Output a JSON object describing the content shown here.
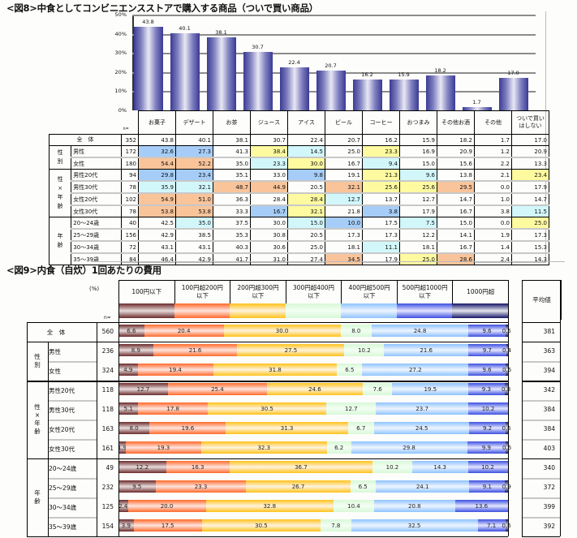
{
  "fig8": {
    "title": "<図8>中食としてコンビニエンスストアで購入する商品（ついで買い商品）",
    "n_label": "n=",
    "y_ticks": [
      "50%",
      "40%",
      "30%",
      "20%",
      "10%",
      "0%"
    ],
    "categories": [
      "お菓子",
      "デザート",
      "お茶",
      "ジュース",
      "アイス",
      "ビール",
      "コーヒー",
      "おつまみ",
      "その他お酒",
      "その他",
      "ついで買い\nはしない"
    ],
    "rows": [
      {
        "group": "",
        "label": "全　体",
        "n": "352",
        "values": [
          "43.8",
          "40.1",
          "38.1",
          "30.7",
          "22.4",
          "20.7",
          "16.2",
          "15.9",
          "18.2",
          "1.7",
          "17.0"
        ],
        "colors": [
          "",
          "",
          "",
          "",
          "",
          "",
          "",
          "",
          "",
          "",
          ""
        ]
      },
      {
        "group": "性別",
        "label": "男性",
        "n": "172",
        "values": [
          "32.6",
          "27.3",
          "41.3",
          "38.4",
          "14.5",
          "25.0",
          "23.3",
          "16.9",
          "20.9",
          "1.2",
          "20.9"
        ],
        "colors": [
          "blue",
          "blue",
          "",
          "yellow",
          "cyan",
          "",
          "yellow",
          "",
          "",
          "",
          ""
        ]
      },
      {
        "group": "性別",
        "label": "女性",
        "n": "180",
        "values": [
          "54.4",
          "52.2",
          "35.0",
          "23.3",
          "30.0",
          "16.7",
          "9.4",
          "15.0",
          "15.6",
          "2.2",
          "13.3"
        ],
        "colors": [
          "orange",
          "orange",
          "",
          "cyan",
          "yellow",
          "",
          "cyan",
          "",
          "",
          "",
          ""
        ]
      },
      {
        "group": "性×年齢",
        "label": "男性20代",
        "n": "94",
        "values": [
          "29.8",
          "23.4",
          "35.1",
          "33.0",
          "9.8",
          "19.1",
          "21.3",
          "9.6",
          "13.8",
          "2.1",
          "23.4"
        ],
        "colors": [
          "blue",
          "blue",
          "",
          "",
          "blue",
          "",
          "yellow",
          "cyan",
          "",
          "",
          "yellow"
        ]
      },
      {
        "group": "性×年齢",
        "label": "男性30代",
        "n": "78",
        "values": [
          "35.9",
          "32.1",
          "48.7",
          "44.9",
          "20.5",
          "32.1",
          "25.6",
          "25.6",
          "29.5",
          "0.0",
          "17.9"
        ],
        "colors": [
          "cyan",
          "cyan",
          "orange",
          "orange",
          "",
          "orange",
          "yellow",
          "yellow",
          "orange",
          "",
          ""
        ]
      },
      {
        "group": "性×年齢",
        "label": "女性20代",
        "n": "102",
        "values": [
          "54.9",
          "51.0",
          "36.3",
          "28.4",
          "28.4",
          "12.7",
          "13.7",
          "12.7",
          "14.7",
          "1.0",
          "14.7"
        ],
        "colors": [
          "orange",
          "orange",
          "",
          "",
          "yellow",
          "cyan",
          "",
          "",
          "",
          "",
          ""
        ]
      },
      {
        "group": "性×年齢",
        "label": "女性30代",
        "n": "78",
        "values": [
          "53.8",
          "53.8",
          "33.3",
          "16.7",
          "32.1",
          "21.8",
          "3.8",
          "17.9",
          "16.7",
          "3.8",
          "11.5"
        ],
        "colors": [
          "orange",
          "orange",
          "",
          "blue",
          "yellow",
          "",
          "blue",
          "",
          "",
          "",
          "cyan"
        ]
      },
      {
        "group": "年齢",
        "label": "20～24歳",
        "n": "40",
        "values": [
          "42.5",
          "35.0",
          "37.5",
          "30.0",
          "15.0",
          "10.0",
          "17.5",
          "7.5",
          "15.0",
          "0.0",
          "25.0"
        ],
        "colors": [
          "",
          "cyan",
          "",
          "",
          "cyan",
          "blue",
          "",
          "cyan",
          "",
          "",
          "yellow"
        ]
      },
      {
        "group": "年齢",
        "label": "25～29歳",
        "n": "156",
        "values": [
          "42.9",
          "38.5",
          "35.3",
          "30.8",
          "20.5",
          "17.3",
          "17.3",
          "12.2",
          "14.1",
          "1.9",
          "17.3"
        ],
        "colors": [
          "",
          "",
          "",
          "",
          "",
          "",
          "",
          "",
          "",
          "",
          ""
        ]
      },
      {
        "group": "年齢",
        "label": "30～34歳",
        "n": "72",
        "values": [
          "43.1",
          "43.1",
          "40.3",
          "30.6",
          "25.0",
          "18.1",
          "11.1",
          "18.1",
          "16.7",
          "1.4",
          "15.3"
        ],
        "colors": [
          "",
          "",
          "",
          "",
          "",
          "",
          "cyan",
          "",
          "",
          "",
          ""
        ]
      },
      {
        "group": "年齢",
        "label": "35～39歳",
        "n": "84",
        "values": [
          "46.4",
          "42.9",
          "41.7",
          "31.0",
          "27.4",
          "34.5",
          "17.9",
          "25.0",
          "28.6",
          "2.4",
          "14.3"
        ],
        "colors": [
          "",
          "",
          "",
          "",
          "",
          "orange",
          "",
          "yellow",
          "orange",
          "",
          ""
        ]
      }
    ],
    "groups": [
      {
        "label": "全　体",
        "rows": [
          0
        ]
      },
      {
        "label": "性\n別",
        "rows": [
          1,
          2
        ]
      },
      {
        "label": "性\n×\n年\n齢",
        "rows": [
          3,
          4,
          5,
          6
        ]
      },
      {
        "label": "年\n齢",
        "rows": [
          7,
          8,
          9,
          10
        ]
      }
    ]
  },
  "fig9": {
    "title": "<図9>内食（自炊）1回あたりの費用",
    "pct_label": "(%)",
    "n_label": "n=",
    "avg_header": "平均値",
    "legend": [
      "100円以下",
      "100円超200円\n以下",
      "200円超300円\n以下",
      "300円超400円\n以下",
      "400円超500円\n以下",
      "500円超1000円\n以下",
      "1000円超"
    ],
    "rows": [
      {
        "label": "全　体",
        "n": "560",
        "values": [
          6.6,
          20.4,
          30.0,
          8.0,
          24.8,
          9.6,
          0.5
        ],
        "avg": "381"
      },
      {
        "label": "男性",
        "n": "236",
        "values": [
          8.9,
          21.6,
          27.5,
          10.2,
          21.6,
          9.7,
          0.4
        ],
        "avg": "363"
      },
      {
        "label": "女性",
        "n": "324",
        "values": [
          4.9,
          19.4,
          31.8,
          6.5,
          27.2,
          9.6,
          0.6
        ],
        "avg": "394"
      },
      {
        "label": "男性20代",
        "n": "118",
        "values": [
          12.7,
          25.4,
          24.6,
          7.6,
          19.5,
          9.3,
          0.8
        ],
        "avg": "342"
      },
      {
        "label": "男性30代",
        "n": "118",
        "values": [
          5.1,
          17.8,
          30.5,
          12.7,
          23.7,
          10.2,
          0.0
        ],
        "avg": "384"
      },
      {
        "label": "女性20代",
        "n": "163",
        "values": [
          8.0,
          19.6,
          31.3,
          6.7,
          24.5,
          9.2,
          0.6
        ],
        "avg": "384"
      },
      {
        "label": "女性30代",
        "n": "161",
        "values": [
          1.9,
          19.3,
          32.3,
          6.2,
          29.8,
          9.9,
          0.6
        ],
        "avg": "403"
      },
      {
        "label": "20～24歳",
        "n": "49",
        "values": [
          12.2,
          16.3,
          36.7,
          10.2,
          14.3,
          10.2,
          0.0
        ],
        "avg": "340"
      },
      {
        "label": "25～29歳",
        "n": "232",
        "values": [
          9.5,
          23.3,
          26.7,
          6.5,
          24.1,
          9.1,
          0.9
        ],
        "avg": "372"
      },
      {
        "label": "30～34歳",
        "n": "125",
        "values": [
          2.4,
          20.0,
          32.8,
          10.4,
          20.8,
          13.6,
          0.0
        ],
        "avg": "399"
      },
      {
        "label": "35～39歳",
        "n": "154",
        "values": [
          3.9,
          17.5,
          30.5,
          7.8,
          32.5,
          7.1,
          0.6
        ],
        "avg": "392"
      }
    ],
    "groups": [
      {
        "label": "性\n別",
        "rows": [
          1,
          2
        ]
      },
      {
        "label": "性\n×\n年\n齢",
        "rows": [
          3,
          4,
          5,
          6
        ]
      },
      {
        "label": "年\n齢",
        "rows": [
          7,
          8,
          9,
          10
        ]
      }
    ]
  },
  "chart_data": [
    {
      "type": "bar",
      "title": "<図8>中食としてコンビニエンスストアで購入する商品（ついで買い商品）",
      "categories": [
        "お菓子",
        "デザート",
        "お茶",
        "ジュース",
        "アイス",
        "ビール",
        "コーヒー",
        "おつまみ",
        "その他お酒",
        "その他",
        "ついで買いはしない"
      ],
      "values": [
        43.8,
        40.1,
        38.1,
        30.7,
        22.4,
        20.7,
        16.2,
        15.9,
        18.2,
        1.7,
        17.0
      ],
      "ylabel": "%",
      "ylim": [
        0,
        50
      ],
      "grid": true,
      "table_rows": [
        {
          "label": "全体",
          "n": 352,
          "values": [
            43.8,
            40.1,
            38.1,
            30.7,
            22.4,
            20.7,
            16.2,
            15.9,
            18.2,
            1.7,
            17.0
          ]
        },
        {
          "label": "男性",
          "n": 172,
          "values": [
            32.6,
            27.3,
            41.3,
            38.4,
            14.5,
            25.0,
            23.3,
            16.9,
            20.9,
            1.2,
            20.9
          ]
        },
        {
          "label": "女性",
          "n": 180,
          "values": [
            54.4,
            52.2,
            35.0,
            23.3,
            30.0,
            16.7,
            9.4,
            15.0,
            15.6,
            2.2,
            13.3
          ]
        },
        {
          "label": "男性20代",
          "n": 94,
          "values": [
            29.8,
            23.4,
            35.1,
            33.0,
            9.8,
            19.1,
            21.3,
            9.6,
            13.8,
            2.1,
            23.4
          ]
        },
        {
          "label": "男性30代",
          "n": 78,
          "values": [
            35.9,
            32.1,
            48.7,
            44.9,
            20.5,
            32.1,
            25.6,
            25.6,
            29.5,
            0.0,
            17.9
          ]
        },
        {
          "label": "女性20代",
          "n": 102,
          "values": [
            54.9,
            51.0,
            36.3,
            28.4,
            28.4,
            12.7,
            13.7,
            12.7,
            14.7,
            1.0,
            14.7
          ]
        },
        {
          "label": "女性30代",
          "n": 78,
          "values": [
            53.8,
            53.8,
            33.3,
            16.7,
            32.1,
            21.8,
            3.8,
            17.9,
            16.7,
            3.8,
            11.5
          ]
        },
        {
          "label": "20～24歳",
          "n": 40,
          "values": [
            42.5,
            35.0,
            37.5,
            30.0,
            15.0,
            10.0,
            17.5,
            7.5,
            15.0,
            0.0,
            25.0
          ]
        },
        {
          "label": "25～29歳",
          "n": 156,
          "values": [
            42.9,
            38.5,
            35.3,
            30.8,
            20.5,
            17.3,
            17.3,
            12.2,
            14.1,
            1.9,
            17.3
          ]
        },
        {
          "label": "30～34歳",
          "n": 72,
          "values": [
            43.1,
            43.1,
            40.3,
            30.6,
            25.0,
            18.1,
            11.1,
            18.1,
            16.7,
            1.4,
            15.3
          ]
        },
        {
          "label": "35～39歳",
          "n": 84,
          "values": [
            46.4,
            42.9,
            41.7,
            31.0,
            27.4,
            34.5,
            17.9,
            25.0,
            28.6,
            2.4,
            14.3
          ]
        }
      ]
    },
    {
      "type": "bar",
      "stacked": true,
      "orientation": "horizontal",
      "title": "<図9>内食（自炊）1回あたりの費用",
      "categories": [
        "全体",
        "男性",
        "女性",
        "男性20代",
        "男性30代",
        "女性20代",
        "女性30代",
        "20～24歳",
        "25～29歳",
        "30～34歳",
        "35～39歳"
      ],
      "n": [
        560,
        236,
        324,
        118,
        118,
        163,
        161,
        49,
        232,
        125,
        154
      ],
      "series": [
        {
          "name": "100円以下",
          "values": [
            6.6,
            8.9,
            4.9,
            12.7,
            5.1,
            8.0,
            1.9,
            12.2,
            9.5,
            2.4,
            3.9
          ]
        },
        {
          "name": "100円超200円以下",
          "values": [
            20.4,
            21.6,
            19.4,
            25.4,
            17.8,
            19.6,
            19.3,
            16.3,
            23.3,
            20.0,
            17.5
          ]
        },
        {
          "name": "200円超300円以下",
          "values": [
            30.0,
            27.5,
            31.8,
            24.6,
            30.5,
            31.3,
            32.3,
            36.7,
            26.7,
            32.8,
            30.5
          ]
        },
        {
          "name": "300円超400円以下",
          "values": [
            8.0,
            10.2,
            6.5,
            7.6,
            12.7,
            6.7,
            6.2,
            10.2,
            6.5,
            10.4,
            7.8
          ]
        },
        {
          "name": "400円超500円以下",
          "values": [
            24.8,
            21.6,
            27.2,
            19.5,
            23.7,
            24.5,
            29.8,
            14.3,
            24.1,
            20.8,
            32.5
          ]
        },
        {
          "name": "500円超1000円以下",
          "values": [
            9.6,
            9.7,
            9.6,
            9.3,
            10.2,
            9.2,
            9.9,
            10.2,
            9.1,
            13.6,
            7.1
          ]
        },
        {
          "name": "1000円超",
          "values": [
            0.5,
            0.4,
            0.6,
            0.8,
            0.0,
            0.6,
            0.6,
            0.0,
            0.9,
            0.0,
            0.6
          ]
        }
      ],
      "averages": [
        381,
        363,
        394,
        342,
        384,
        384,
        403,
        340,
        372,
        399,
        392
      ],
      "xlabel": "(%)",
      "xlim": [
        0,
        100
      ]
    }
  ]
}
